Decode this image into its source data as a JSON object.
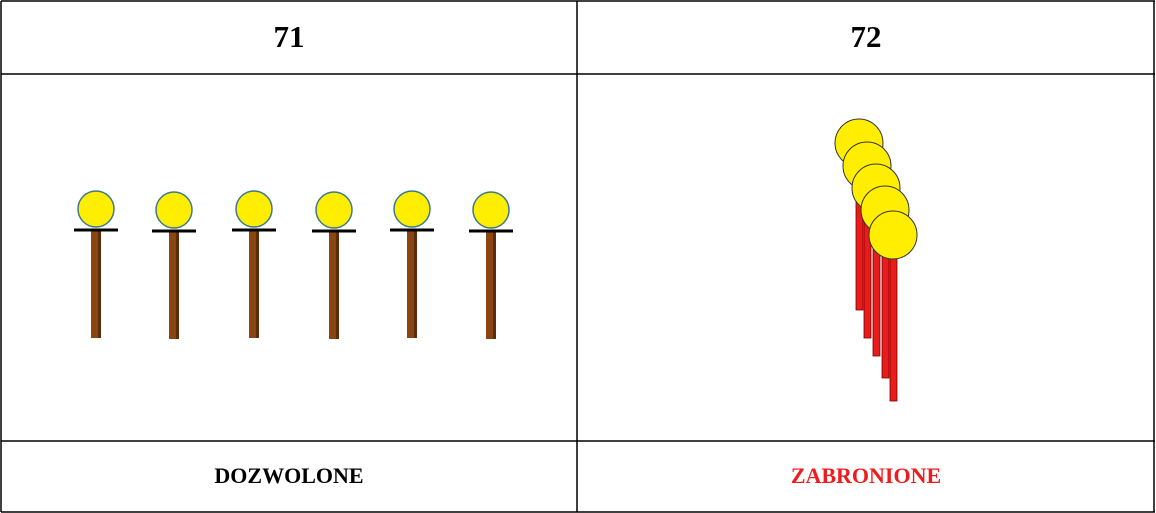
{
  "table": {
    "header": [
      "71",
      "72"
    ],
    "footer": [
      "DOZWOLONE",
      "ZABRONIONE"
    ]
  }
}
